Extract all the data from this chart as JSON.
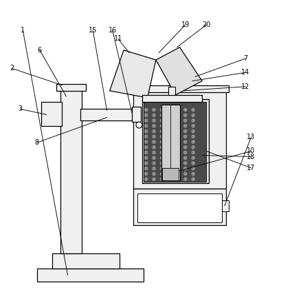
{
  "bg_color": "#ffffff",
  "line_color": "#000000",
  "light_gray": "#f0f0f0",
  "mid_gray": "#c8c8c8",
  "dark_gray": "#505050",
  "figsize": [
    4.09,
    4.43
  ],
  "dpi": 100,
  "labels": {
    "1": [
      0.08,
      0.93,
      0.26,
      0.895
    ],
    "2": [
      0.04,
      0.8,
      0.22,
      0.785
    ],
    "3": [
      0.07,
      0.655,
      0.22,
      0.635
    ],
    "6": [
      0.14,
      0.865,
      0.27,
      0.845
    ],
    "7": [
      0.87,
      0.835,
      0.72,
      0.74
    ],
    "8": [
      0.13,
      0.535,
      0.38,
      0.555
    ],
    "10": [
      0.89,
      0.505,
      0.72,
      0.49
    ],
    "11": [
      0.42,
      0.905,
      0.52,
      0.8
    ],
    "12": [
      0.87,
      0.735,
      0.69,
      0.685
    ],
    "13": [
      0.89,
      0.555,
      0.77,
      0.54
    ],
    "14": [
      0.87,
      0.785,
      0.69,
      0.745
    ],
    "15": [
      0.33,
      0.935,
      0.42,
      0.815
    ],
    "16": [
      0.4,
      0.935,
      0.5,
      0.735
    ],
    "17": [
      0.89,
      0.445,
      0.78,
      0.415
    ],
    "18": [
      0.89,
      0.485,
      0.78,
      0.46
    ],
    "19": [
      0.66,
      0.955,
      0.58,
      0.845
    ],
    "20": [
      0.73,
      0.955,
      0.64,
      0.8
    ]
  }
}
